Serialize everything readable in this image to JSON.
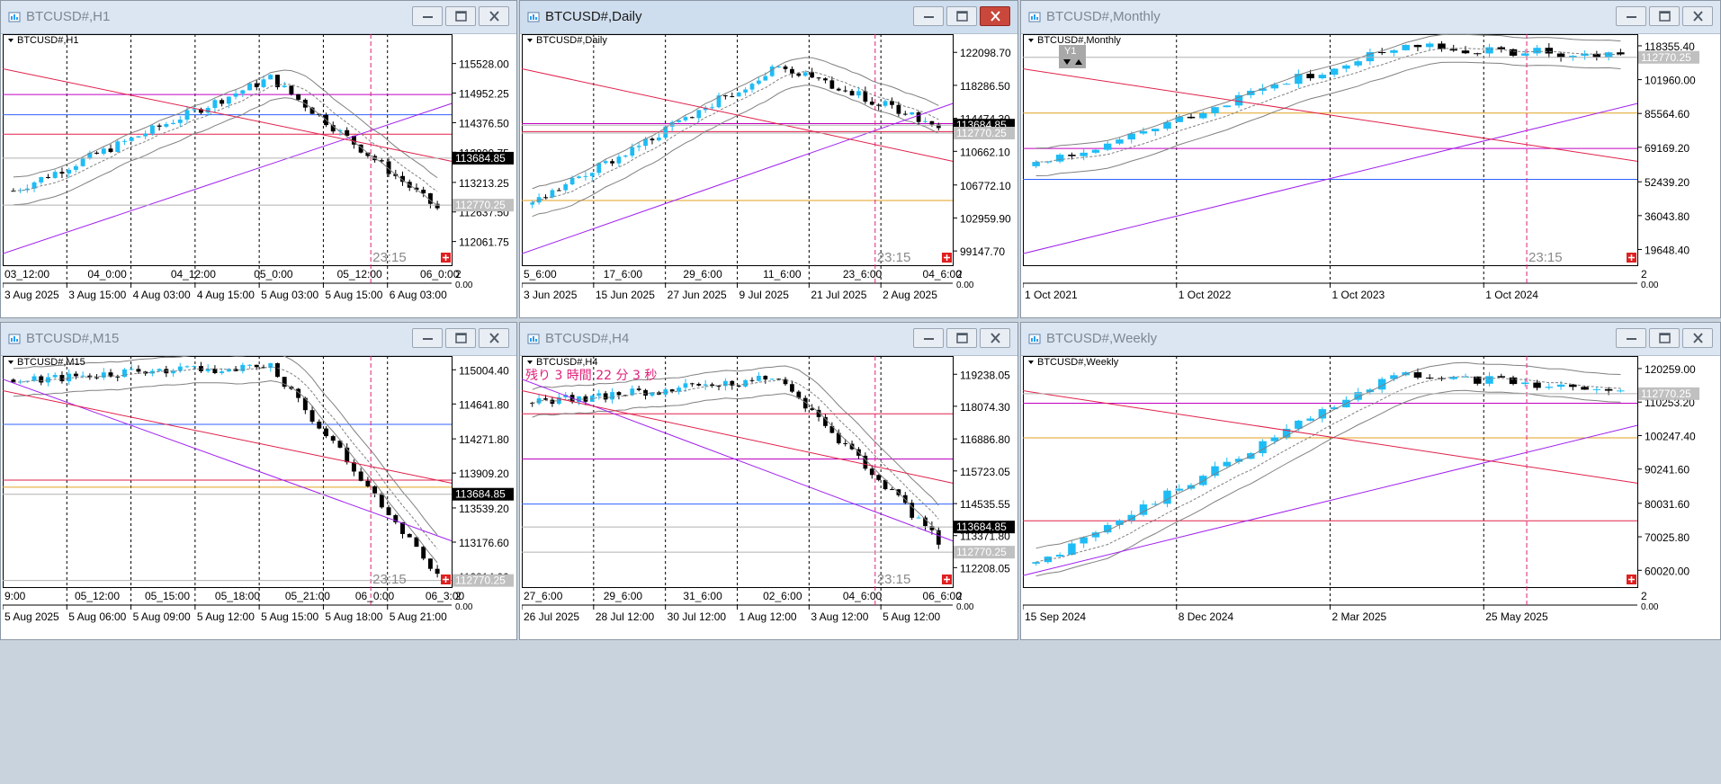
{
  "windows": [
    {
      "id": "h1",
      "title": "BTCUSD#,H1",
      "active": false,
      "chart_data": {
        "type": "candlestick",
        "symbol_label": "BTCUSD#,H1",
        "y_ticks": [
          "115528.00",
          "114952.25",
          "114376.50",
          "113800.75",
          "113213.25",
          "112637.50",
          "112061.75"
        ],
        "y_range": [
          111600,
          116100
        ],
        "price_labels": [
          {
            "text": "113684.85",
            "value": 113684.85,
            "style": "black"
          },
          {
            "text": "112770.25",
            "value": 112770.25,
            "style": "gray"
          }
        ],
        "x_labels_top": [
          "03_12:00",
          "04_0:00",
          "04_12:00",
          "05_0:00",
          "05_12:00",
          "06_0:00"
        ],
        "x_labels_bottom": [
          "3 Aug 2025",
          "3 Aug 15:00",
          "4 Aug 03:00",
          "4 Aug 15:00",
          "5 Aug 03:00",
          "5 Aug 15:00",
          "6 Aug 03:00"
        ],
        "corner_number": "2",
        "corner_sub": "0.00",
        "countdown": "23:15",
        "start": 113050,
        "end": 112700,
        "points": 62,
        "peak": 115250,
        "trend_up": true
      }
    },
    {
      "id": "daily",
      "title": "BTCUSD#,Daily",
      "active": true,
      "chart_data": {
        "type": "candlestick",
        "symbol_label": "BTCUSD#,Daily",
        "y_ticks": [
          "122098.70",
          "118286.50",
          "114474.30",
          "110662.10",
          "106772.10",
          "102959.90",
          "99147.70"
        ],
        "y_range": [
          97500,
          124200
        ],
        "price_labels": [
          {
            "text": "113684.85",
            "value": 113684.85,
            "style": "black"
          },
          {
            "text": "112770.25",
            "value": 112770.25,
            "style": "gray"
          }
        ],
        "x_labels_top": [
          "5_6:00",
          "17_6:00",
          "29_6:00",
          "11_6:00",
          "23_6:00",
          "04_6:00"
        ],
        "x_labels_bottom": [
          "3 Jun 2025",
          "15 Jun 2025",
          "27 Jun 2025",
          "9 Jul 2025",
          "21 Jul 2025",
          "2 Aug 2025"
        ],
        "corner_number": "2",
        "corner_sub": "0.00",
        "countdown": "23:15",
        "start": 104500,
        "end": 113700,
        "points": 62,
        "peak": 120500,
        "trend_up": true
      }
    },
    {
      "id": "monthly",
      "title": "BTCUSD#,Monthly",
      "active": false,
      "chart_data": {
        "type": "candlestick",
        "symbol_label": "BTCUSD#,Monthly",
        "badge": "Y1",
        "y_ticks": [
          "118355.40",
          "101960.00",
          "85564.60",
          "69169.20",
          "52439.20",
          "36043.80",
          "19648.40"
        ],
        "y_range": [
          12000,
          124000
        ],
        "price_labels": [
          {
            "text": "112770.25",
            "value": 112770.25,
            "style": "gray"
          }
        ],
        "x_labels_top": [],
        "x_labels_bottom": [
          "1 Oct 2021",
          "1 Oct 2022",
          "1 Oct 2023",
          "1 Oct 2024"
        ],
        "corner_number": "2",
        "corner_sub": "0.00",
        "countdown": "23:15",
        "start": 60000,
        "end": 113700,
        "points": 50,
        "peak": 118000,
        "trend_up": true
      }
    },
    {
      "id": "m15",
      "title": "BTCUSD#,M15",
      "active": false,
      "chart_data": {
        "type": "candlestick",
        "symbol_label": "BTCUSD#,M15",
        "y_ticks": [
          "115004.40",
          "114641.80",
          "114271.80",
          "113909.20",
          "113539.20",
          "113176.60",
          "112814.00"
        ],
        "y_range": [
          112700,
          115150
        ],
        "price_labels": [
          {
            "text": "113684.85",
            "value": 113684.85,
            "style": "black"
          },
          {
            "text": "112770.25",
            "value": 112770.25,
            "style": "gray"
          }
        ],
        "x_labels_top": [
          "9:00",
          "05_12:00",
          "05_15:00",
          "05_18:00",
          "05_21:00",
          "06_0:00",
          "06_3:00"
        ],
        "x_labels_bottom": [
          "5 Aug 2025",
          "5 Aug 06:00",
          "5 Aug 09:00",
          "5 Aug 12:00",
          "5 Aug 15:00",
          "5 Aug 18:00",
          "5 Aug 21:00"
        ],
        "corner_number": "2",
        "corner_sub": "0.00",
        "countdown": "23:15",
        "start": 114900,
        "end": 112850,
        "points": 62,
        "peak": 115050,
        "trend_up": false
      }
    },
    {
      "id": "h4",
      "title": "BTCUSD#,H4",
      "active": false,
      "chart_data": {
        "type": "candlestick",
        "symbol_label": "BTCUSD#,H4",
        "notice": "残り 3 時間 22 分 3 秒",
        "y_ticks": [
          "119238.05",
          "118074.30",
          "116886.80",
          "115723.05",
          "114535.55",
          "113371.80",
          "112208.05"
        ],
        "y_range": [
          111500,
          119900
        ],
        "price_labels": [
          {
            "text": "113684.85",
            "value": 113684.85,
            "style": "black"
          },
          {
            "text": "112770.25",
            "value": 112770.25,
            "style": "gray"
          }
        ],
        "x_labels_top": [
          "27_6:00",
          "29_6:00",
          "31_6:00",
          "02_6:00",
          "04_6:00",
          "06_6:00"
        ],
        "x_labels_bottom": [
          "26 Jul 2025",
          "28 Jul 12:00",
          "30 Jul 12:00",
          "1 Aug 12:00",
          "3 Aug 12:00",
          "5 Aug 12:00"
        ],
        "corner_number": "2",
        "corner_sub": "0.00",
        "countdown": "23:15",
        "start": 118200,
        "end": 113200,
        "points": 62,
        "peak": 119100,
        "trend_up": false
      }
    },
    {
      "id": "weekly",
      "title": "BTCUSD#,Weekly",
      "active": false,
      "chart_data": {
        "type": "candlestick",
        "symbol_label": "BTCUSD#,Weekly",
        "y_ticks": [
          "120259.00",
          "110253.20",
          "100247.40",
          "90241.60",
          "80031.60",
          "70025.80",
          "60020.00"
        ],
        "y_range": [
          55000,
          124000
        ],
        "price_labels": [
          {
            "text": "112770.25",
            "value": 112770.25,
            "style": "gray"
          }
        ],
        "x_labels_top": [],
        "x_labels_bottom": [
          "15 Sep 2024",
          "8 Dec 2024",
          "2 Mar 2025",
          "25 May 2025"
        ],
        "corner_number": "2",
        "corner_sub": "0.00",
        "countdown": "",
        "start": 62000,
        "end": 113700,
        "points": 50,
        "peak": 119000,
        "trend_up": true
      }
    }
  ],
  "colors": {
    "bull": "#1ebcf5",
    "bear": "#000000",
    "ma_line": "#808080",
    "trend_red": "#e0204a",
    "trend_purple": "#a020f0",
    "horizontal_blue": "#3060ff",
    "horizontal_orange": "#e0a020",
    "horizontal_magenta": "#c000c0",
    "grid_dotted": "#000000",
    "close_red": "#c9473b"
  }
}
